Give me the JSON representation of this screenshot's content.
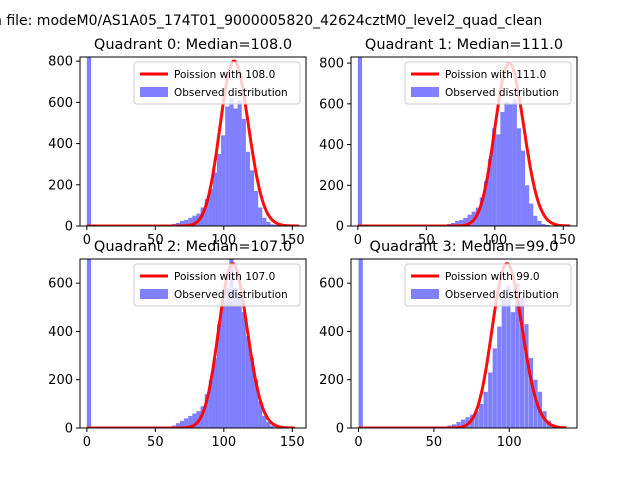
{
  "figure": {
    "suptitle": "n file: modeM0/AS1A05_174T01_9000005820_42624cztM0_level2_quad_clean"
  },
  "colors": {
    "poisson_line": "#ff0000",
    "histogram_fill": "#8080ff",
    "axes": "#000000"
  },
  "chart_data": [
    {
      "type": "bar",
      "title": "Quadrant 0: Median=108.0",
      "xlim": [
        -5,
        160
      ],
      "ylim": [
        0,
        820
      ],
      "xticks": [
        0,
        50,
        100,
        150
      ],
      "yticks": [
        0,
        200,
        400,
        600,
        800
      ],
      "legend_position": "upper-right",
      "series": [
        {
          "name": "Poission with 108.0",
          "kind": "line",
          "lambda": 108.0,
          "x_range": [
            0,
            155
          ],
          "peak": 800
        },
        {
          "name": "Observed distribution",
          "kind": "histogram",
          "bin_width": 3.1,
          "bins": [
            [
              0,
              820
            ],
            [
              59,
              5
            ],
            [
              62,
              10
            ],
            [
              65,
              15
            ],
            [
              68,
              25
            ],
            [
              71,
              30
            ],
            [
              74,
              40
            ],
            [
              77,
              50
            ],
            [
              80,
              60
            ],
            [
              83,
              90
            ],
            [
              86,
              130
            ],
            [
              89,
              180
            ],
            [
              92,
              260
            ],
            [
              95,
              350
            ],
            [
              98,
              440
            ],
            [
              101,
              580
            ],
            [
              104,
              620
            ],
            [
              107,
              570
            ],
            [
              110,
              610
            ],
            [
              113,
              520
            ],
            [
              116,
              360
            ],
            [
              119,
              270
            ],
            [
              122,
              170
            ],
            [
              125,
              90
            ],
            [
              128,
              40
            ],
            [
              131,
              20
            ],
            [
              134,
              8
            ],
            [
              137,
              5
            ]
          ]
        }
      ]
    },
    {
      "type": "bar",
      "title": "Quadrant 1: Median=111.0",
      "xlim": [
        -5,
        160
      ],
      "ylim": [
        0,
        830
      ],
      "xticks": [
        0,
        50,
        100,
        150
      ],
      "yticks": [
        0,
        200,
        400,
        600,
        800
      ],
      "legend_position": "upper-right",
      "series": [
        {
          "name": "Poission with 111.0",
          "kind": "line",
          "lambda": 111.0,
          "x_range": [
            0,
            155
          ],
          "peak": 800
        },
        {
          "name": "Observed distribution",
          "kind": "histogram",
          "bin_width": 3.1,
          "bins": [
            [
              0,
              830
            ],
            [
              62,
              5
            ],
            [
              65,
              10
            ],
            [
              68,
              15
            ],
            [
              71,
              25
            ],
            [
              74,
              30
            ],
            [
              77,
              40
            ],
            [
              80,
              55
            ],
            [
              83,
              70
            ],
            [
              86,
              90
            ],
            [
              89,
              140
            ],
            [
              92,
              220
            ],
            [
              95,
              330
            ],
            [
              98,
              480
            ],
            [
              101,
              450
            ],
            [
              104,
              560
            ],
            [
              107,
              610
            ],
            [
              110,
              600
            ],
            [
              113,
              620
            ],
            [
              116,
              480
            ],
            [
              119,
              370
            ],
            [
              122,
              200
            ],
            [
              125,
              110
            ],
            [
              128,
              50
            ],
            [
              131,
              25
            ],
            [
              134,
              10
            ],
            [
              137,
              5
            ]
          ]
        }
      ]
    },
    {
      "type": "bar",
      "title": "Quadrant 2: Median=107.0",
      "xlim": [
        -5,
        160
      ],
      "ylim": [
        0,
        700
      ],
      "xticks": [
        0,
        50,
        100,
        150
      ],
      "yticks": [
        0,
        200,
        400,
        600
      ],
      "legend_position": "upper-right",
      "series": [
        {
          "name": "Poission with 107.0",
          "kind": "line",
          "lambda": 107.0,
          "x_range": [
            0,
            152
          ],
          "peak": 680
        },
        {
          "name": "Observed distribution",
          "kind": "histogram",
          "bin_width": 3.1,
          "bins": [
            [
              0,
              700
            ],
            [
              62,
              10
            ],
            [
              65,
              20
            ],
            [
              68,
              30
            ],
            [
              71,
              40
            ],
            [
              74,
              50
            ],
            [
              77,
              60
            ],
            [
              80,
              70
            ],
            [
              83,
              90
            ],
            [
              86,
              140
            ],
            [
              89,
              200
            ],
            [
              92,
              290
            ],
            [
              95,
              430
            ],
            [
              98,
              520
            ],
            [
              101,
              580
            ],
            [
              104,
              700
            ],
            [
              107,
              580
            ],
            [
              110,
              550
            ],
            [
              113,
              480
            ],
            [
              116,
              380
            ],
            [
              119,
              290
            ],
            [
              122,
              200
            ],
            [
              125,
              110
            ],
            [
              128,
              50
            ],
            [
              131,
              25
            ],
            [
              134,
              10
            ]
          ]
        }
      ]
    },
    {
      "type": "bar",
      "title": "Quadrant 3: Median=99.0",
      "xlim": [
        -5,
        145
      ],
      "ylim": [
        0,
        700
      ],
      "xticks": [
        0,
        50,
        100
      ],
      "yticks": [
        0,
        200,
        400,
        600
      ],
      "legend_position": "upper-right",
      "series": [
        {
          "name": "Poission with 99.0",
          "kind": "line",
          "lambda": 99.0,
          "x_range": [
            0,
            138
          ],
          "peak": 680
        },
        {
          "name": "Observed distribution",
          "kind": "histogram",
          "bin_width": 2.85,
          "bins": [
            [
              0,
              700
            ],
            [
              56,
              5
            ],
            [
              59,
              10
            ],
            [
              62,
              15
            ],
            [
              65,
              25
            ],
            [
              68,
              35
            ],
            [
              71,
              45
            ],
            [
              74,
              55
            ],
            [
              77,
              70
            ],
            [
              80,
              100
            ],
            [
              83,
              150
            ],
            [
              86,
              230
            ],
            [
              89,
              330
            ],
            [
              92,
              420
            ],
            [
              95,
              540
            ],
            [
              98,
              590
            ],
            [
              101,
              480
            ],
            [
              104,
              600
            ],
            [
              107,
              540
            ],
            [
              110,
              430
            ],
            [
              113,
              290
            ],
            [
              116,
              200
            ],
            [
              119,
              150
            ],
            [
              122,
              70
            ],
            [
              125,
              30
            ],
            [
              128,
              15
            ],
            [
              131,
              5
            ]
          ]
        }
      ]
    }
  ]
}
